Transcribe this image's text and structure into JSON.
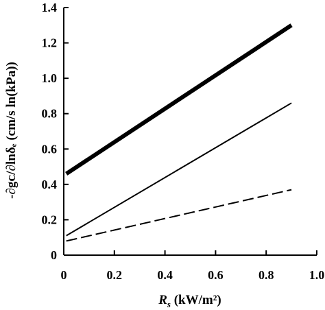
{
  "chart_data": {
    "type": "line",
    "title": "",
    "xlabel": {
      "symbol": "R",
      "subscript": "s",
      "units": " (kW/m²)"
    },
    "ylabel": {
      "text": "-∂gᴄ/∂lnδₑ (cm/s ln(kPa))"
    },
    "xlim": [
      0,
      1.0
    ],
    "ylim": [
      0,
      1.4
    ],
    "xticks": [
      0,
      0.2,
      0.4,
      0.6,
      0.8,
      1.0
    ],
    "xtick_labels": [
      "0",
      "0.2",
      "0.4",
      "0.6",
      "0.8",
      "1.0"
    ],
    "yticks": [
      0,
      0.2,
      0.4,
      0.6,
      0.8,
      1.0,
      1.2,
      1.4
    ],
    "ytick_labels": [
      "0",
      "0.2",
      "0.4",
      "0.6",
      "0.8",
      "1.0",
      "1.2",
      "1.4"
    ],
    "grid": false,
    "legend": "none",
    "series": [
      {
        "style": "thick-solid",
        "x": [
          0.01,
          0.9
        ],
        "y": [
          0.46,
          1.3
        ]
      },
      {
        "style": "thin-solid",
        "x": [
          0.01,
          0.9
        ],
        "y": [
          0.11,
          0.86
        ]
      },
      {
        "style": "dashed",
        "x": [
          0.01,
          0.9
        ],
        "y": [
          0.08,
          0.37
        ]
      }
    ]
  }
}
